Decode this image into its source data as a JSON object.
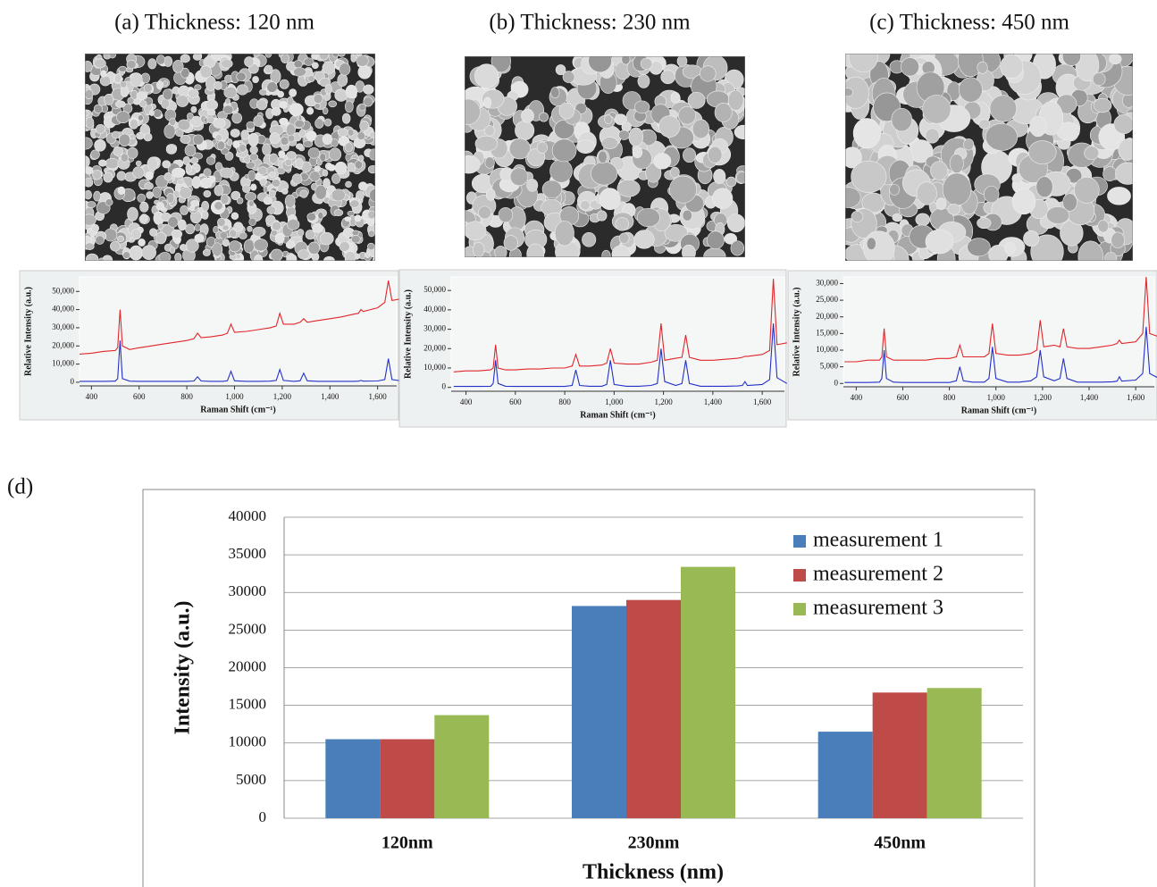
{
  "chart_data": [
    {
      "type": "line",
      "title": "(a)  Thickness: 120 nm",
      "x_label": "Raman Shift (cm⁻¹)",
      "y_label": "Relative Intensity (a.u.)",
      "x": [
        350,
        400,
        450,
        500,
        510,
        520,
        530,
        560,
        600,
        650,
        700,
        750,
        800,
        830,
        845,
        860,
        900,
        950,
        970,
        985,
        1000,
        1050,
        1100,
        1150,
        1175,
        1190,
        1205,
        1250,
        1275,
        1290,
        1305,
        1350,
        1400,
        1450,
        1500,
        1520,
        1530,
        1540,
        1600,
        1630,
        1645,
        1660,
        1700
      ],
      "series": [
        {
          "color": "#e0262a",
          "values": [
            15500,
            16000,
            17000,
            17500,
            19000,
            40000,
            20000,
            18000,
            19000,
            20000,
            21000,
            22000,
            23000,
            24000,
            27000,
            24500,
            25000,
            26000,
            27000,
            32000,
            27500,
            28000,
            29000,
            30000,
            31000,
            38000,
            32000,
            32000,
            33000,
            35000,
            33000,
            34000,
            35000,
            36000,
            37500,
            38000,
            40000,
            39000,
            41000,
            44000,
            56000,
            45000,
            46000
          ]
        },
        {
          "color": "#2230c8",
          "values": [
            500,
            500,
            500,
            600,
            2000,
            23000,
            2000,
            600,
            500,
            500,
            500,
            500,
            500,
            700,
            3000,
            700,
            500,
            500,
            800,
            6000,
            800,
            500,
            500,
            600,
            1000,
            7000,
            1000,
            500,
            800,
            5000,
            800,
            500,
            500,
            500,
            500,
            600,
            1000,
            600,
            700,
            1500,
            13000,
            1500,
            700
          ]
        }
      ],
      "xlim": [
        350,
        1680
      ],
      "xticks": [
        400,
        600,
        800,
        {
          "value": 1000,
          "label": "1,000"
        },
        {
          "value": 1200,
          "label": "1,200"
        },
        {
          "value": 1400,
          "label": "1,400"
        },
        {
          "value": 1600,
          "label": "1,600"
        }
      ],
      "ylim": [
        -2000,
        58000
      ],
      "yticks": [
        0,
        {
          "value": 10000,
          "label": "10,000"
        },
        {
          "value": 20000,
          "label": "20,000"
        },
        {
          "value": 30000,
          "label": "30,000"
        },
        {
          "value": 40000,
          "label": "40,000"
        },
        {
          "value": 50000,
          "label": "50,000"
        }
      ]
    },
    {
      "type": "line",
      "title": "(b)  Thickness: 230 nm",
      "x_label": "Raman Shift (cm⁻¹)",
      "y_label": "Relative Intensity (a.u.)",
      "x": [
        350,
        400,
        450,
        500,
        510,
        520,
        530,
        560,
        600,
        650,
        700,
        750,
        800,
        830,
        845,
        860,
        900,
        950,
        970,
        985,
        1000,
        1050,
        1100,
        1150,
        1175,
        1190,
        1205,
        1250,
        1275,
        1290,
        1305,
        1350,
        1400,
        1450,
        1500,
        1520,
        1530,
        1540,
        1600,
        1630,
        1645,
        1660,
        1700
      ],
      "series": [
        {
          "color": "#e0262a",
          "values": [
            8000,
            8500,
            8500,
            9000,
            10000,
            22000,
            10000,
            9000,
            9000,
            9500,
            9500,
            10000,
            10000,
            11000,
            17000,
            11000,
            11000,
            11500,
            12500,
            20000,
            12500,
            12000,
            12000,
            13000,
            14000,
            33000,
            14000,
            15000,
            15500,
            27000,
            15500,
            14000,
            14000,
            14500,
            15000,
            15500,
            16000,
            16000,
            17000,
            19000,
            56000,
            22000,
            23000
          ]
        },
        {
          "color": "#2230c8",
          "values": [
            500,
            500,
            500,
            600,
            2000,
            14000,
            2000,
            600,
            500,
            500,
            500,
            500,
            500,
            1000,
            9000,
            1000,
            600,
            600,
            1500,
            14000,
            1500,
            600,
            600,
            1000,
            2000,
            20000,
            3000,
            1000,
            2000,
            14000,
            2000,
            600,
            600,
            600,
            700,
            1000,
            3000,
            1000,
            1500,
            4000,
            33000,
            5000,
            2000
          ]
        }
      ],
      "xlim": [
        340,
        1690
      ],
      "xticks": [
        400,
        600,
        800,
        {
          "value": 1000,
          "label": "1,000"
        },
        {
          "value": 1200,
          "label": "1,200"
        },
        {
          "value": 1400,
          "label": "1,400"
        },
        {
          "value": 1600,
          "label": "1,600"
        }
      ],
      "ylim": [
        -2000,
        57000
      ],
      "yticks": [
        0,
        {
          "value": 10000,
          "label": "10,000"
        },
        {
          "value": 20000,
          "label": "20,000"
        },
        {
          "value": 30000,
          "label": "30,000"
        },
        {
          "value": 40000,
          "label": "40,000"
        },
        {
          "value": 50000,
          "label": "50,000"
        }
      ]
    },
    {
      "type": "line",
      "title": "(c)  Thickness: 450 nm",
      "x_label": "Raman Shift (cm⁻¹)",
      "y_label": "Relative Intensity (a.u.)",
      "x": [
        350,
        400,
        450,
        500,
        510,
        520,
        530,
        560,
        600,
        650,
        700,
        750,
        800,
        830,
        845,
        860,
        900,
        950,
        970,
        985,
        1000,
        1050,
        1100,
        1150,
        1175,
        1190,
        1205,
        1250,
        1275,
        1290,
        1305,
        1350,
        1400,
        1450,
        1500,
        1520,
        1530,
        1540,
        1600,
        1630,
        1645,
        1660,
        1700
      ],
      "series": [
        {
          "color": "#e0262a",
          "values": [
            6500,
            6500,
            7000,
            7000,
            8000,
            16500,
            8000,
            7000,
            7000,
            7000,
            7000,
            7500,
            7500,
            8000,
            11500,
            8000,
            8000,
            8000,
            9000,
            18000,
            9000,
            8500,
            8500,
            9000,
            10000,
            19000,
            11000,
            11500,
            11000,
            16500,
            11000,
            10500,
            10500,
            11000,
            11500,
            12000,
            13000,
            12000,
            12500,
            15000,
            32000,
            15000,
            14000
          ]
        },
        {
          "color": "#2230c8",
          "values": [
            300,
            300,
            300,
            400,
            1500,
            10000,
            1500,
            400,
            300,
            300,
            300,
            300,
            300,
            800,
            5000,
            800,
            400,
            400,
            1500,
            11000,
            1500,
            400,
            400,
            800,
            2000,
            10000,
            2000,
            800,
            1500,
            7500,
            1500,
            400,
            400,
            400,
            500,
            700,
            2000,
            700,
            1000,
            3000,
            17000,
            3000,
            1500
          ]
        }
      ],
      "xlim": [
        345,
        1680
      ],
      "xticks": [
        400,
        600,
        800,
        {
          "value": 1000,
          "label": "1,000"
        },
        {
          "value": 1200,
          "label": "1,200"
        },
        {
          "value": 1400,
          "label": "1,400"
        },
        {
          "value": 1600,
          "label": "1,600"
        }
      ],
      "ylim": [
        -1000,
        32000
      ],
      "yticks": [
        0,
        {
          "value": 5000,
          "label": "5,000"
        },
        {
          "value": 10000,
          "label": "10,000"
        },
        {
          "value": 15000,
          "label": "15,000"
        },
        {
          "value": 20000,
          "label": "20,000"
        },
        {
          "value": 25000,
          "label": "25,000"
        },
        {
          "value": 30000,
          "label": "30,000"
        }
      ]
    },
    {
      "type": "bar",
      "title": "(d)",
      "x_label": "Thickness (nm)",
      "y_label": "Intensity (a.u.)",
      "categories": [
        "120nm",
        "230nm",
        "450nm"
      ],
      "series": [
        {
          "name": "measurement 1",
          "color": "#4a7ebb",
          "values": [
            10500,
            28200,
            11500
          ]
        },
        {
          "name": "measurement 2",
          "color": "#be4b48",
          "values": [
            10500,
            29000,
            16700
          ]
        },
        {
          "name": "measurement 3",
          "color": "#98b954",
          "values": [
            13700,
            33400,
            17300
          ]
        }
      ],
      "ylim": [
        0,
        40000
      ],
      "yticks": [
        0,
        5000,
        10000,
        15000,
        20000,
        25000,
        30000,
        35000,
        40000
      ],
      "grid": true,
      "legend": "upper right"
    }
  ]
}
